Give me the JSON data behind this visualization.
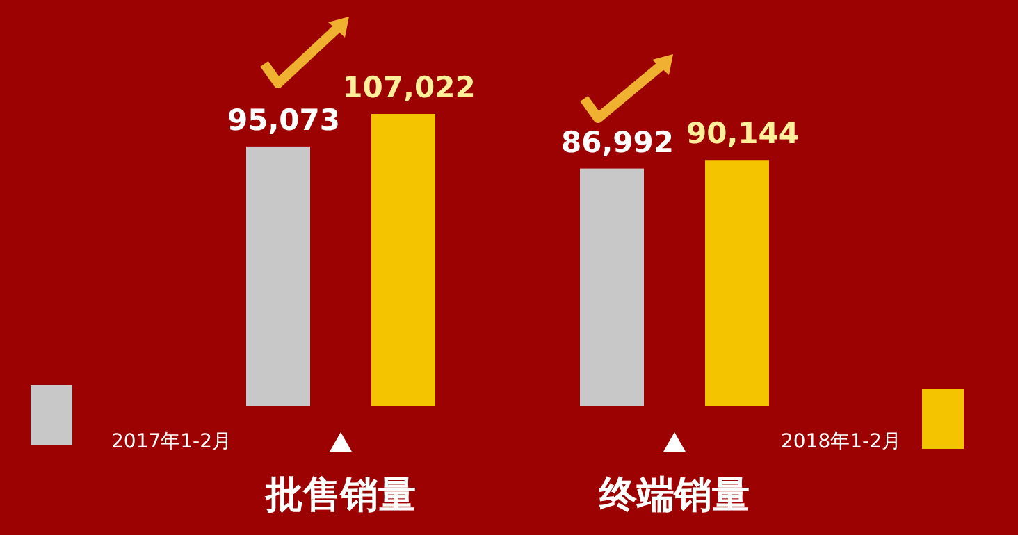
{
  "chart_data": {
    "type": "bar",
    "categories": [
      "批售销量",
      "终端销量"
    ],
    "series": [
      {
        "name": "2017年1-2月",
        "color": "#c8c8c8",
        "values": [
          95073,
          86992
        ],
        "value_labels": [
          "95,073",
          "86,992"
        ]
      },
      {
        "name": "2018年1-2月",
        "color": "#f5c400",
        "values": [
          107022,
          90144
        ],
        "value_labels": [
          "107,022",
          "90,144"
        ]
      }
    ],
    "legend": "bottom",
    "relative": false
  }
}
